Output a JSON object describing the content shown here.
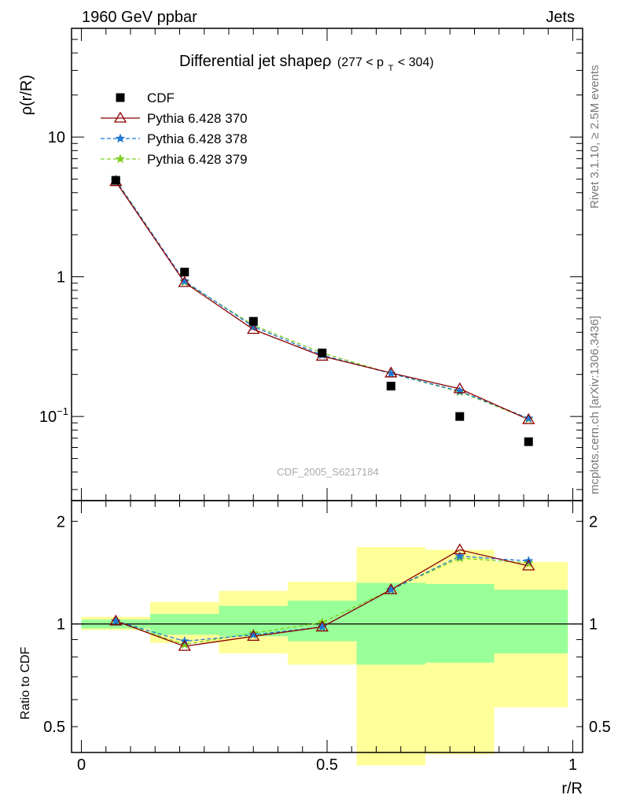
{
  "header": {
    "left": "1960 GeV ppbar",
    "right": "Jets"
  },
  "side_labels": {
    "rivet": "Rivet 3.1.10, ≥ 2.5M events",
    "mcplots": "mcplots.cern.ch [arXiv:1306.3436]"
  },
  "chart_data": [
    {
      "type": "line",
      "title": "Differential jet shapeρ",
      "title_suffix": "(277 < p",
      "title_sub": "T",
      "title_end": " < 304)",
      "ylabel": "ρ(r/R)",
      "ylog": true,
      "ylim": [
        0.025,
        60
      ],
      "xlim": [
        -0.02,
        1.02
      ],
      "yticks": [
        {
          "v": 10,
          "label": "10"
        },
        {
          "v": 1,
          "label": "1"
        },
        {
          "v": 0.1,
          "label": "10",
          "sup": "−1"
        }
      ],
      "analysis_label": "CDF_2005_S6217184",
      "legend": "top-left",
      "series": [
        {
          "name": "CDF",
          "color": "#000000",
          "marker": "square",
          "line": "none",
          "x": [
            0.07,
            0.21,
            0.35,
            0.49,
            0.63,
            0.77,
            0.91
          ],
          "y": [
            4.9,
            1.08,
            0.48,
            0.285,
            0.165,
            0.1,
            0.066
          ]
        },
        {
          "name": "Pythia 6.428 370",
          "color": "#8b0000",
          "marker": "triangle",
          "line": "solid",
          "x": [
            0.07,
            0.21,
            0.35,
            0.49,
            0.63,
            0.77,
            0.91
          ],
          "y": [
            4.8,
            0.91,
            0.42,
            0.27,
            0.205,
            0.158,
            0.095
          ]
        },
        {
          "name": "Pythia 6.428 378",
          "color": "#1f77d4",
          "marker": "star",
          "line": "dashed",
          "x": [
            0.07,
            0.21,
            0.35,
            0.49,
            0.63,
            0.77,
            0.91
          ],
          "y": [
            4.9,
            0.93,
            0.44,
            0.275,
            0.203,
            0.152,
            0.097
          ]
        },
        {
          "name": "Pythia 6.428 379",
          "color": "#7ccf1f",
          "marker": "star",
          "line": "dashed",
          "x": [
            0.07,
            0.21,
            0.35,
            0.49,
            0.63,
            0.77,
            0.91
          ],
          "y": [
            4.95,
            0.92,
            0.45,
            0.285,
            0.203,
            0.15,
            0.096
          ]
        }
      ]
    },
    {
      "type": "line",
      "ylabel": "Ratio to CDF",
      "xlabel": "r/R",
      "ylog": true,
      "ylim": [
        0.42,
        2.3
      ],
      "xlim": [
        -0.02,
        1.02
      ],
      "yticks": [
        {
          "v": 2,
          "label": "2"
        },
        {
          "v": 1,
          "label": "1"
        },
        {
          "v": 0.5,
          "label": "0.5"
        }
      ],
      "xticks": [
        {
          "v": 0,
          "label": "0"
        },
        {
          "v": 0.5,
          "label": "0.5"
        },
        {
          "v": 1,
          "label": "1"
        }
      ],
      "reference_line": 1,
      "bands": {
        "outer_color": "#ffff99",
        "inner_color": "#99ff99",
        "bins": [
          {
            "lo": 0.0,
            "hi": 0.14,
            "outer": [
              0.96,
              1.05
            ],
            "inner": [
              0.97,
              1.03
            ]
          },
          {
            "lo": 0.14,
            "hi": 0.28,
            "outer": [
              0.88,
              1.16
            ],
            "inner": [
              0.93,
              1.07
            ]
          },
          {
            "lo": 0.28,
            "hi": 0.42,
            "outer": [
              0.82,
              1.25
            ],
            "inner": [
              0.92,
              1.13
            ]
          },
          {
            "lo": 0.42,
            "hi": 0.56,
            "outer": [
              0.76,
              1.33
            ],
            "inner": [
              0.89,
              1.17
            ]
          },
          {
            "lo": 0.56,
            "hi": 0.7,
            "outer": [
              0.385,
              1.68
            ],
            "inner": [
              0.76,
              1.32
            ]
          },
          {
            "lo": 0.7,
            "hi": 0.84,
            "outer": [
              0.415,
              1.65
            ],
            "inner": [
              0.77,
              1.31
            ]
          },
          {
            "lo": 0.84,
            "hi": 0.99,
            "outer": [
              0.57,
              1.52
            ],
            "inner": [
              0.82,
              1.26
            ]
          }
        ]
      },
      "series": [
        {
          "name": "Pythia 6.428 370",
          "color": "#8b0000",
          "marker": "triangle",
          "line": "solid",
          "x": [
            0.07,
            0.21,
            0.35,
            0.49,
            0.63,
            0.77,
            0.91
          ],
          "y": [
            1.02,
            0.86,
            0.92,
            0.98,
            1.26,
            1.65,
            1.48
          ]
        },
        {
          "name": "Pythia 6.428 378",
          "color": "#1f77d4",
          "marker": "star",
          "line": "dashed",
          "x": [
            0.07,
            0.21,
            0.35,
            0.49,
            0.63,
            0.77,
            0.91
          ],
          "y": [
            1.02,
            0.89,
            0.93,
            0.98,
            1.26,
            1.58,
            1.53
          ]
        },
        {
          "name": "Pythia 6.428 379",
          "color": "#7ccf1f",
          "marker": "star",
          "line": "dashed",
          "x": [
            0.07,
            0.21,
            0.35,
            0.49,
            0.63,
            0.77,
            0.91
          ],
          "y": [
            1.02,
            0.87,
            0.94,
            1.01,
            1.26,
            1.56,
            1.51
          ]
        }
      ]
    }
  ]
}
